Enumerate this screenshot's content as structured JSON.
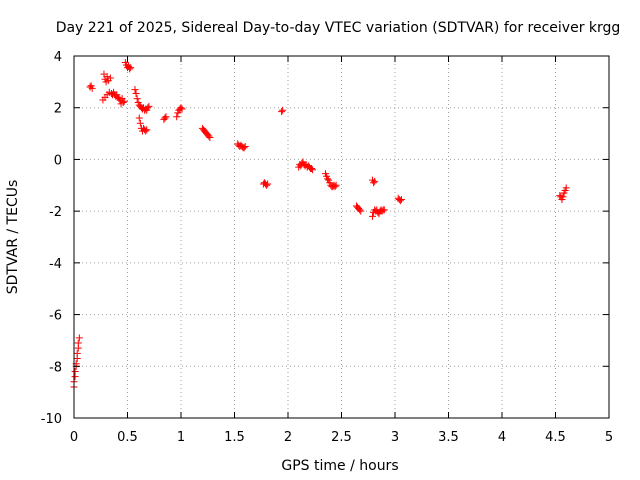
{
  "chart_data": {
    "type": "scatter",
    "title": "Day 221 of 2025, Sidereal Day-to-day VTEC variation (SDTVAR) for receiver krgg",
    "xlabel": "GPS time / hours",
    "ylabel": "SDTVAR / TECUs",
    "xlim": [
      0,
      5
    ],
    "ylim": [
      -10,
      4
    ],
    "xticks": [
      "0",
      "0.5",
      "1",
      "1.5",
      "2",
      "2.5",
      "3",
      "3.5",
      "4",
      "4.5",
      "5"
    ],
    "xtick_values": [
      0,
      0.5,
      1,
      1.5,
      2,
      2.5,
      3,
      3.5,
      4,
      4.5,
      5
    ],
    "yticks": [
      "4",
      "2",
      "0",
      "-2",
      "-4",
      "-6",
      "-8",
      "-10"
    ],
    "ytick_values": [
      4,
      2,
      0,
      -2,
      -4,
      -6,
      -8,
      -10
    ],
    "grid": true,
    "marker": "+",
    "color": "#ff0000",
    "series": [
      {
        "name": "SDTVAR",
        "points": [
          [
            0.0,
            -8.8
          ],
          [
            0.0,
            -8.6
          ],
          [
            0.01,
            -8.4
          ],
          [
            0.01,
            -8.2
          ],
          [
            0.02,
            -8.0
          ],
          [
            0.02,
            -7.9
          ],
          [
            0.03,
            -7.7
          ],
          [
            0.03,
            -7.5
          ],
          [
            0.04,
            -7.3
          ],
          [
            0.04,
            -7.1
          ],
          [
            0.05,
            -6.9
          ],
          [
            0.15,
            2.8
          ],
          [
            0.16,
            2.85
          ],
          [
            0.17,
            2.75
          ],
          [
            0.27,
            2.3
          ],
          [
            0.28,
            3.3
          ],
          [
            0.29,
            3.1
          ],
          [
            0.29,
            2.4
          ],
          [
            0.3,
            3.0
          ],
          [
            0.31,
            3.2
          ],
          [
            0.31,
            2.5
          ],
          [
            0.32,
            3.05
          ],
          [
            0.33,
            2.6
          ],
          [
            0.34,
            3.15
          ],
          [
            0.35,
            2.55
          ],
          [
            0.36,
            2.5
          ],
          [
            0.37,
            2.6
          ],
          [
            0.38,
            2.5
          ],
          [
            0.39,
            2.45
          ],
          [
            0.4,
            2.5
          ],
          [
            0.41,
            2.4
          ],
          [
            0.42,
            2.35
          ],
          [
            0.43,
            2.3
          ],
          [
            0.44,
            2.15
          ],
          [
            0.45,
            2.35
          ],
          [
            0.46,
            2.2
          ],
          [
            0.47,
            2.25
          ],
          [
            0.48,
            3.75
          ],
          [
            0.49,
            3.65
          ],
          [
            0.5,
            3.55
          ],
          [
            0.51,
            3.6
          ],
          [
            0.52,
            3.5
          ],
          [
            0.53,
            3.55
          ],
          [
            0.57,
            2.7
          ],
          [
            0.58,
            2.55
          ],
          [
            0.59,
            2.35
          ],
          [
            0.6,
            2.2
          ],
          [
            0.61,
            2.1
          ],
          [
            0.62,
            2.05
          ],
          [
            0.63,
            2.0
          ],
          [
            0.64,
            1.95
          ],
          [
            0.65,
            2.0
          ],
          [
            0.66,
            1.9
          ],
          [
            0.67,
            1.95
          ],
          [
            0.68,
            1.9
          ],
          [
            0.69,
            2.0
          ],
          [
            0.7,
            2.05
          ],
          [
            0.61,
            1.6
          ],
          [
            0.62,
            1.4
          ],
          [
            0.63,
            1.2
          ],
          [
            0.64,
            1.1
          ],
          [
            0.65,
            1.2
          ],
          [
            0.66,
            1.15
          ],
          [
            0.67,
            1.1
          ],
          [
            0.68,
            1.15
          ],
          [
            0.84,
            1.55
          ],
          [
            0.85,
            1.6
          ],
          [
            0.86,
            1.65
          ],
          [
            0.96,
            1.65
          ],
          [
            0.97,
            1.8
          ],
          [
            0.98,
            1.9
          ],
          [
            0.99,
            1.95
          ],
          [
            1.0,
            2.0
          ],
          [
            1.01,
            1.95
          ],
          [
            1.2,
            1.2
          ],
          [
            1.21,
            1.15
          ],
          [
            1.22,
            1.1
          ],
          [
            1.23,
            1.05
          ],
          [
            1.24,
            1.0
          ],
          [
            1.25,
            0.95
          ],
          [
            1.26,
            0.9
          ],
          [
            1.27,
            0.85
          ],
          [
            1.53,
            0.6
          ],
          [
            1.54,
            0.55
          ],
          [
            1.55,
            0.5
          ],
          [
            1.56,
            0.55
          ],
          [
            1.57,
            0.5
          ],
          [
            1.58,
            0.45
          ],
          [
            1.59,
            0.45
          ],
          [
            1.6,
            0.5
          ],
          [
            1.77,
            -0.95
          ],
          [
            1.78,
            -0.9
          ],
          [
            1.79,
            -0.95
          ],
          [
            1.8,
            -1.0
          ],
          [
            1.81,
            -0.95
          ],
          [
            1.94,
            1.85
          ],
          [
            1.95,
            1.9
          ],
          [
            2.1,
            -0.3
          ],
          [
            2.11,
            -0.2
          ],
          [
            2.12,
            -0.25
          ],
          [
            2.13,
            -0.15
          ],
          [
            2.14,
            -0.1
          ],
          [
            2.15,
            -0.2
          ],
          [
            2.16,
            -0.25
          ],
          [
            2.17,
            -0.2
          ],
          [
            2.18,
            -0.3
          ],
          [
            2.19,
            -0.25
          ],
          [
            2.2,
            -0.3
          ],
          [
            2.21,
            -0.35
          ],
          [
            2.22,
            -0.35
          ],
          [
            2.23,
            -0.4
          ],
          [
            2.35,
            -0.55
          ],
          [
            2.36,
            -0.65
          ],
          [
            2.37,
            -0.75
          ],
          [
            2.38,
            -0.8
          ],
          [
            2.39,
            -0.9
          ],
          [
            2.4,
            -1.0
          ],
          [
            2.41,
            -1.05
          ],
          [
            2.42,
            -1.05
          ],
          [
            2.43,
            -1.0
          ],
          [
            2.44,
            -1.05
          ],
          [
            2.45,
            -1.0
          ],
          [
            2.64,
            -1.8
          ],
          [
            2.65,
            -1.85
          ],
          [
            2.66,
            -1.9
          ],
          [
            2.67,
            -1.95
          ],
          [
            2.68,
            -2.0
          ],
          [
            2.79,
            -0.8
          ],
          [
            2.8,
            -0.9
          ],
          [
            2.81,
            -0.85
          ],
          [
            2.79,
            -2.2
          ],
          [
            2.8,
            -2.05
          ],
          [
            2.81,
            -1.95
          ],
          [
            2.82,
            -2.0
          ],
          [
            2.83,
            -1.95
          ],
          [
            2.84,
            -2.05
          ],
          [
            2.85,
            -2.1
          ],
          [
            2.86,
            -2.0
          ],
          [
            2.87,
            -1.95
          ],
          [
            2.88,
            -2.0
          ],
          [
            2.89,
            -1.95
          ],
          [
            2.9,
            -1.95
          ],
          [
            3.03,
            -1.5
          ],
          [
            3.04,
            -1.55
          ],
          [
            3.05,
            -1.6
          ],
          [
            3.06,
            -1.55
          ],
          [
            4.54,
            -1.4
          ],
          [
            4.55,
            -1.45
          ],
          [
            4.56,
            -1.55
          ],
          [
            4.57,
            -1.45
          ],
          [
            4.58,
            -1.3
          ],
          [
            4.59,
            -1.2
          ],
          [
            4.6,
            -1.1
          ]
        ]
      }
    ]
  }
}
